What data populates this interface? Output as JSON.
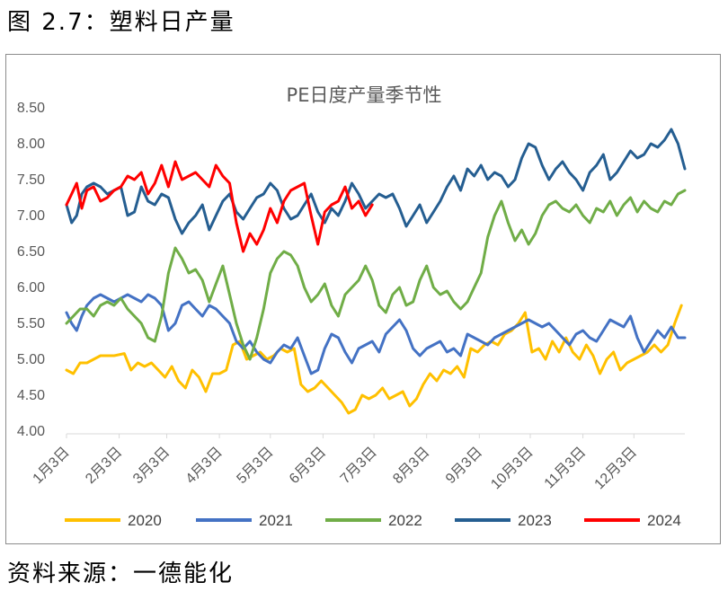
{
  "figure_title": "图 2.7：塑料日产量",
  "source_note": "资料来源：一德能化",
  "colors": {
    "2020": "#ffc000",
    "2021": "#4472c4",
    "2022": "#70ad47",
    "2023": "#255e91",
    "2024": "#ff0000",
    "axis_text": "#595959",
    "axis_line": "#d9d9d9"
  },
  "chart_data": {
    "type": "line",
    "title": "PE日度产量季节性",
    "xlabel": "",
    "ylabel": "",
    "ylim": [
      4.0,
      8.5
    ],
    "yticks": [
      "4.00",
      "4.50",
      "5.00",
      "5.50",
      "6.00",
      "6.50",
      "7.00",
      "7.50",
      "8.00",
      "8.50"
    ],
    "xticks": [
      "1月3日",
      "2月3日",
      "3月3日",
      "4月3日",
      "5月3日",
      "6月3日",
      "7月3日",
      "8月3日",
      "9月3日",
      "10月3日",
      "11月3日",
      "12月3日"
    ],
    "x_unit": "day of year (0 = 1月3日)",
    "legend_position": "bottom",
    "series": [
      {
        "name": "2020",
        "color": "#ffc000",
        "x": [
          0,
          4,
          8,
          12,
          20,
          28,
          34,
          38,
          42,
          46,
          50,
          54,
          58,
          62,
          66,
          70,
          74,
          78,
          82,
          86,
          90,
          94,
          98,
          102,
          106,
          110,
          114,
          118,
          122,
          126,
          130,
          134,
          138,
          142,
          146,
          150,
          154,
          158,
          162,
          166,
          170,
          174,
          178,
          182,
          186,
          190,
          194,
          198,
          202,
          206,
          210,
          214,
          218,
          222,
          226,
          230,
          234,
          238,
          242,
          246,
          250,
          254,
          258,
          262,
          266,
          270,
          274,
          278,
          282,
          286,
          290,
          294,
          298,
          302,
          306,
          310,
          314,
          318,
          322,
          326,
          330,
          334,
          338,
          342,
          346,
          350,
          354,
          358,
          362
        ],
        "values": [
          4.85,
          4.8,
          4.95,
          4.95,
          5.05,
          5.05,
          5.08,
          4.85,
          4.95,
          4.9,
          4.95,
          4.85,
          4.75,
          4.9,
          4.7,
          4.6,
          4.85,
          4.75,
          4.55,
          4.8,
          4.8,
          4.85,
          5.2,
          5.25,
          5.0,
          5.05,
          5.1,
          5.0,
          5.05,
          5.15,
          5.1,
          5.15,
          4.65,
          4.55,
          4.6,
          4.7,
          4.6,
          4.5,
          4.4,
          4.25,
          4.3,
          4.5,
          4.45,
          4.5,
          4.6,
          4.45,
          4.5,
          4.55,
          4.35,
          4.45,
          4.65,
          4.8,
          4.7,
          4.85,
          4.8,
          4.9,
          4.75,
          5.15,
          5.1,
          5.2,
          5.25,
          5.2,
          5.35,
          5.4,
          5.5,
          5.65,
          5.1,
          5.15,
          5.0,
          5.25,
          5.1,
          5.3,
          5.1,
          5.0,
          5.2,
          5.05,
          4.8,
          5.0,
          5.1,
          4.85,
          4.95,
          5.0,
          5.05,
          5.1,
          5.2,
          5.1,
          5.2,
          5.5,
          5.75
        ]
      },
      {
        "name": "2021",
        "color": "#4472c4",
        "x": [
          0,
          3,
          6,
          9,
          12,
          16,
          20,
          24,
          28,
          32,
          36,
          40,
          44,
          48,
          52,
          56,
          60,
          64,
          68,
          72,
          76,
          80,
          84,
          88,
          92,
          96,
          100,
          104,
          108,
          112,
          116,
          120,
          124,
          128,
          132,
          136,
          140,
          144,
          148,
          152,
          156,
          160,
          164,
          168,
          172,
          176,
          180,
          184,
          188,
          192,
          196,
          200,
          204,
          208,
          212,
          216,
          220,
          224,
          228,
          232,
          236,
          240,
          244,
          248,
          252,
          256,
          260,
          264,
          268,
          272,
          276,
          280,
          284,
          288,
          292,
          296,
          300,
          304,
          308,
          312,
          316,
          320,
          324,
          328,
          332,
          336,
          340,
          344,
          348,
          352,
          356,
          360,
          364
        ],
        "values": [
          5.65,
          5.5,
          5.4,
          5.6,
          5.75,
          5.85,
          5.9,
          5.85,
          5.8,
          5.85,
          5.9,
          5.85,
          5.8,
          5.9,
          5.85,
          5.75,
          5.4,
          5.5,
          5.75,
          5.8,
          5.7,
          5.6,
          5.75,
          5.7,
          5.6,
          5.5,
          5.25,
          5.15,
          5.25,
          5.1,
          5.0,
          4.95,
          5.1,
          5.2,
          5.15,
          5.3,
          5.05,
          4.8,
          4.85,
          5.15,
          5.35,
          5.3,
          5.1,
          4.95,
          5.15,
          5.2,
          5.25,
          5.1,
          5.35,
          5.45,
          5.55,
          5.4,
          5.15,
          5.05,
          5.15,
          5.2,
          5.25,
          5.1,
          5.15,
          5.05,
          5.35,
          5.3,
          5.25,
          5.2,
          5.3,
          5.35,
          5.4,
          5.45,
          5.5,
          5.55,
          5.5,
          5.45,
          5.5,
          5.4,
          5.3,
          5.2,
          5.35,
          5.4,
          5.3,
          5.25,
          5.4,
          5.55,
          5.5,
          5.45,
          5.6,
          5.3,
          5.1,
          5.25,
          5.4,
          5.3,
          5.45,
          5.3,
          5.3
        ]
      },
      {
        "name": "2022",
        "color": "#70ad47",
        "x": [
          0,
          4,
          8,
          12,
          16,
          20,
          24,
          28,
          32,
          36,
          40,
          44,
          48,
          52,
          56,
          60,
          64,
          68,
          72,
          76,
          80,
          84,
          88,
          92,
          96,
          100,
          104,
          108,
          112,
          116,
          120,
          124,
          128,
          132,
          136,
          140,
          144,
          148,
          152,
          156,
          160,
          164,
          168,
          172,
          176,
          180,
          184,
          188,
          192,
          196,
          200,
          204,
          208,
          212,
          216,
          220,
          224,
          228,
          232,
          236,
          240,
          244,
          248,
          252,
          256,
          260,
          264,
          268,
          272,
          276,
          280,
          284,
          288,
          292,
          296,
          300,
          304,
          308,
          312,
          316,
          320,
          324,
          328,
          332,
          336,
          340,
          344,
          348,
          352,
          356,
          360,
          364
        ],
        "values": [
          5.5,
          5.6,
          5.7,
          5.7,
          5.6,
          5.75,
          5.8,
          5.75,
          5.85,
          5.7,
          5.6,
          5.5,
          5.3,
          5.25,
          5.6,
          6.2,
          6.55,
          6.4,
          6.2,
          6.25,
          6.1,
          5.8,
          6.05,
          6.3,
          5.9,
          5.5,
          5.2,
          5.0,
          5.3,
          5.7,
          6.2,
          6.4,
          6.5,
          6.45,
          6.3,
          6.0,
          5.8,
          5.9,
          6.05,
          5.75,
          5.6,
          5.9,
          6.0,
          6.1,
          6.3,
          6.1,
          5.75,
          5.65,
          5.9,
          6.0,
          5.75,
          5.8,
          6.1,
          6.3,
          6.0,
          5.9,
          5.95,
          5.8,
          5.7,
          5.8,
          6.0,
          6.2,
          6.7,
          7.0,
          7.2,
          6.9,
          6.65,
          6.8,
          6.6,
          6.75,
          7.0,
          7.15,
          7.2,
          7.1,
          7.05,
          7.15,
          7.0,
          6.9,
          7.1,
          7.05,
          7.2,
          7.0,
          7.15,
          7.25,
          7.05,
          7.2,
          7.1,
          7.05,
          7.2,
          7.15,
          7.3,
          7.35
        ]
      },
      {
        "name": "2023",
        "color": "#255e91",
        "x": [
          0,
          3,
          6,
          9,
          12,
          16,
          20,
          24,
          28,
          32,
          36,
          40,
          44,
          48,
          52,
          56,
          60,
          64,
          68,
          72,
          76,
          80,
          84,
          88,
          92,
          96,
          100,
          104,
          108,
          112,
          116,
          120,
          124,
          128,
          132,
          136,
          140,
          144,
          148,
          152,
          156,
          160,
          164,
          168,
          172,
          176,
          180,
          184,
          188,
          192,
          196,
          200,
          204,
          208,
          212,
          216,
          220,
          224,
          228,
          232,
          236,
          240,
          244,
          248,
          252,
          256,
          260,
          264,
          268,
          272,
          276,
          280,
          284,
          288,
          292,
          296,
          300,
          304,
          308,
          312,
          316,
          320,
          324,
          328,
          332,
          336,
          340,
          344,
          348,
          352,
          356,
          360,
          364
        ],
        "values": [
          7.15,
          6.9,
          7.0,
          7.3,
          7.4,
          7.45,
          7.4,
          7.3,
          7.35,
          7.4,
          7.0,
          7.05,
          7.4,
          7.2,
          7.15,
          7.3,
          7.25,
          6.95,
          6.75,
          6.9,
          7.0,
          7.15,
          6.8,
          7.0,
          7.2,
          7.3,
          7.05,
          6.95,
          7.1,
          7.25,
          7.3,
          7.45,
          7.35,
          7.1,
          6.95,
          7.0,
          7.15,
          7.3,
          7.05,
          6.9,
          7.1,
          7.0,
          7.2,
          7.45,
          7.3,
          7.1,
          7.2,
          7.3,
          7.25,
          7.3,
          7.1,
          6.85,
          7.0,
          7.15,
          6.9,
          7.05,
          7.2,
          7.4,
          7.55,
          7.35,
          7.65,
          7.55,
          7.7,
          7.5,
          7.6,
          7.55,
          7.4,
          7.5,
          7.8,
          8.0,
          7.95,
          7.7,
          7.5,
          7.65,
          7.75,
          7.6,
          7.5,
          7.35,
          7.6,
          7.7,
          7.85,
          7.5,
          7.6,
          7.75,
          7.9,
          7.8,
          7.85,
          8.0,
          7.95,
          8.05,
          8.2,
          8.0,
          7.65
        ]
      },
      {
        "name": "2024",
        "color": "#ff0000",
        "x": [
          0,
          3,
          6,
          9,
          12,
          16,
          20,
          24,
          28,
          32,
          36,
          40,
          44,
          48,
          52,
          56,
          60,
          64,
          68,
          72,
          76,
          80,
          84,
          88,
          92,
          96,
          100,
          104,
          108,
          112,
          116,
          120,
          124,
          128,
          132,
          136,
          140,
          144,
          148,
          152,
          156,
          160,
          164,
          168,
          172,
          176,
          180
        ],
        "values": [
          7.15,
          7.3,
          7.45,
          7.1,
          7.35,
          7.4,
          7.2,
          7.25,
          7.35,
          7.4,
          7.55,
          7.5,
          7.6,
          7.3,
          7.45,
          7.7,
          7.4,
          7.75,
          7.5,
          7.55,
          7.6,
          7.5,
          7.4,
          7.7,
          7.55,
          7.45,
          6.9,
          6.5,
          6.75,
          6.6,
          6.8,
          7.1,
          6.9,
          7.2,
          7.35,
          7.4,
          7.45,
          7.0,
          6.6,
          7.05,
          7.15,
          7.2,
          7.4,
          7.1,
          7.2,
          7.0,
          7.15
        ]
      }
    ]
  }
}
